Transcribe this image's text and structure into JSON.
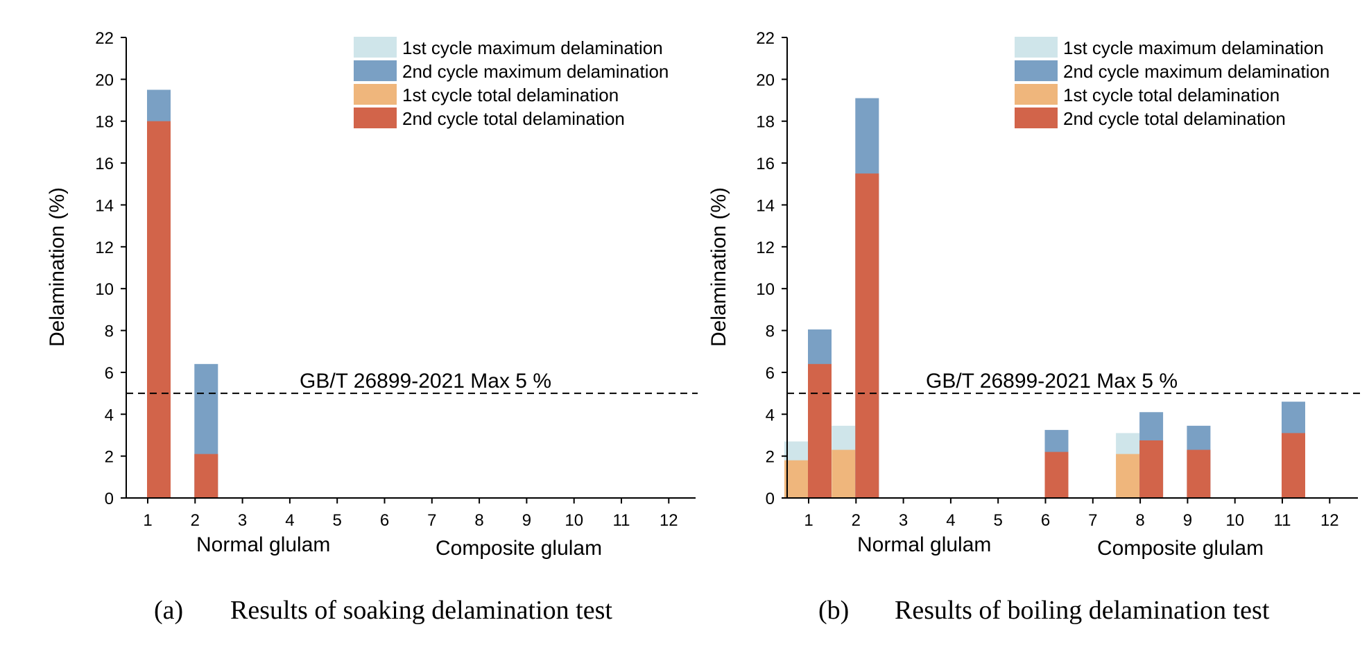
{
  "colors": {
    "cycle1_max": "#cfe5ea",
    "cycle2_max": "#7aa0c4",
    "cycle1_total": "#efb67c",
    "cycle2_total": "#d2644a",
    "axis": "#000000"
  },
  "chart_data": [
    {
      "type": "bar",
      "ylabel": "Delamination (%)",
      "ylim": [
        0,
        22
      ],
      "yticks": [
        "0",
        "2",
        "4",
        "6",
        "8",
        "10",
        "12",
        "14",
        "16",
        "18",
        "20",
        "22"
      ],
      "categories": [
        "1",
        "2",
        "3",
        "4",
        "5",
        "6",
        "7",
        "8",
        "9",
        "10",
        "11",
        "12"
      ],
      "group_labels": [
        "Normal glulam",
        "Composite glulam"
      ],
      "reference_line": {
        "value": 5,
        "label": "GB/T 26899-2021 Max 5 %"
      },
      "legend": [
        "1st cycle maximum delamination",
        "2nd cycle maximum delamination",
        "1st cycle total delamination",
        "2nd cycle total delamination"
      ],
      "series": [
        {
          "name": "1st cycle maximum delamination",
          "values": [
            0,
            0,
            0,
            0,
            0,
            0,
            0,
            0,
            0,
            0,
            0,
            0
          ]
        },
        {
          "name": "2nd cycle maximum delamination",
          "values": [
            19.5,
            6.4,
            0,
            0,
            0,
            0,
            0,
            0,
            0,
            0,
            0,
            0
          ]
        },
        {
          "name": "1st cycle total delamination",
          "values": [
            0,
            0,
            0,
            0,
            0,
            0,
            0,
            0,
            0,
            0,
            0,
            0
          ]
        },
        {
          "name": "2nd cycle total delamination",
          "values": [
            18.0,
            2.1,
            0,
            0,
            0,
            0,
            0,
            0,
            0,
            0,
            0,
            0
          ]
        }
      ],
      "caption_letter": "(a)",
      "caption_text": "Results of soaking delamination test"
    },
    {
      "type": "bar",
      "ylabel": "Delamination (%)",
      "ylim": [
        0,
        22
      ],
      "yticks": [
        "0",
        "2",
        "4",
        "6",
        "8",
        "10",
        "12",
        "14",
        "16",
        "18",
        "20",
        "22"
      ],
      "categories": [
        "1",
        "2",
        "3",
        "4",
        "5",
        "6",
        "7",
        "8",
        "9",
        "10",
        "11",
        "12"
      ],
      "group_labels": [
        "Normal glulam",
        "Composite glulam"
      ],
      "reference_line": {
        "value": 5,
        "label": "GB/T 26899-2021 Max 5 %"
      },
      "legend": [
        "1st cycle maximum delamination",
        "2nd cycle maximum delamination",
        "1st cycle total delamination",
        "2nd cycle total delamination"
      ],
      "series": [
        {
          "name": "1st cycle maximum delamination",
          "values": [
            2.7,
            3.45,
            0,
            0,
            0,
            0,
            0,
            3.1,
            0,
            0,
            0,
            0
          ]
        },
        {
          "name": "2nd cycle maximum delamination",
          "values": [
            8.05,
            19.1,
            0,
            0,
            0,
            3.25,
            0,
            4.1,
            3.45,
            0,
            4.6,
            0
          ]
        },
        {
          "name": "1st cycle total delamination",
          "values": [
            1.8,
            2.3,
            0,
            0,
            0,
            0,
            0,
            2.1,
            0,
            0,
            0,
            0
          ]
        },
        {
          "name": "2nd cycle total delamination",
          "values": [
            6.4,
            15.5,
            0,
            0,
            0,
            2.2,
            0,
            2.75,
            2.3,
            0,
            3.1,
            0
          ]
        }
      ],
      "caption_letter": "(b)",
      "caption_text": "Results of boiling delamination test"
    }
  ]
}
